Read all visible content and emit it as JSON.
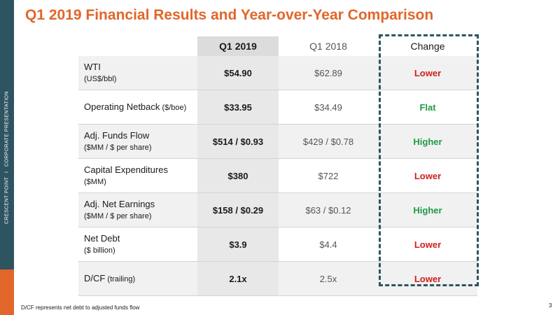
{
  "sidebar": {
    "company": "CRESCENT POINT",
    "separator": "I",
    "section": "CORPORATE PRESENTATION",
    "colors": {
      "band": "#2e5462",
      "accent": "#e2662a"
    }
  },
  "title": "Q1 2019 Financial Results and Year-over-Year Comparison",
  "table": {
    "headers": {
      "metric": "",
      "q1_2019": "Q1 2019",
      "q1_2018": "Q1 2018",
      "change": "Change"
    },
    "rows": [
      {
        "label": "WTI",
        "unit_inline": "",
        "sub": "(US$/bbl)",
        "q1_2019": "$54.90",
        "q1_2018": "$62.89",
        "change": "Lower"
      },
      {
        "label": "Operating Netback",
        "unit_inline": " ($/boe)",
        "sub": "",
        "q1_2019": "$33.95",
        "q1_2018": "$34.49",
        "change": "Flat"
      },
      {
        "label": "Adj. Funds Flow",
        "unit_inline": "",
        "sub": "($MM / $ per share)",
        "q1_2019": "$514 / $0.93",
        "q1_2018": "$429 / $0.78",
        "change": "Higher"
      },
      {
        "label": "Capital Expenditures",
        "unit_inline": "",
        "sub": "($MM)",
        "q1_2019": "$380",
        "q1_2018": "$722",
        "change": "Lower"
      },
      {
        "label": "Adj. Net Earnings",
        "unit_inline": "",
        "sub": "($MM / $ per share)",
        "q1_2019": "$158 / $0.29",
        "q1_2018": "$63 / $0.12",
        "change": "Higher"
      },
      {
        "label": "Net Debt",
        "unit_inline": "",
        "sub": "($ billion)",
        "q1_2019": "$3.9",
        "q1_2018": "$4.4",
        "change": "Lower"
      },
      {
        "label": "D/CF",
        "unit_inline": " (trailing)",
        "sub": "",
        "q1_2019": "2.1x",
        "q1_2018": "2.5x",
        "change": "Lower"
      }
    ],
    "colors": {
      "lower": "#d0201b",
      "flat": "#1f9a47",
      "higher": "#1f9a47",
      "highlight_box": "#2e5462"
    }
  },
  "footnote": "D/CF represents net debt to adjusted funds flow",
  "page_number": "3"
}
